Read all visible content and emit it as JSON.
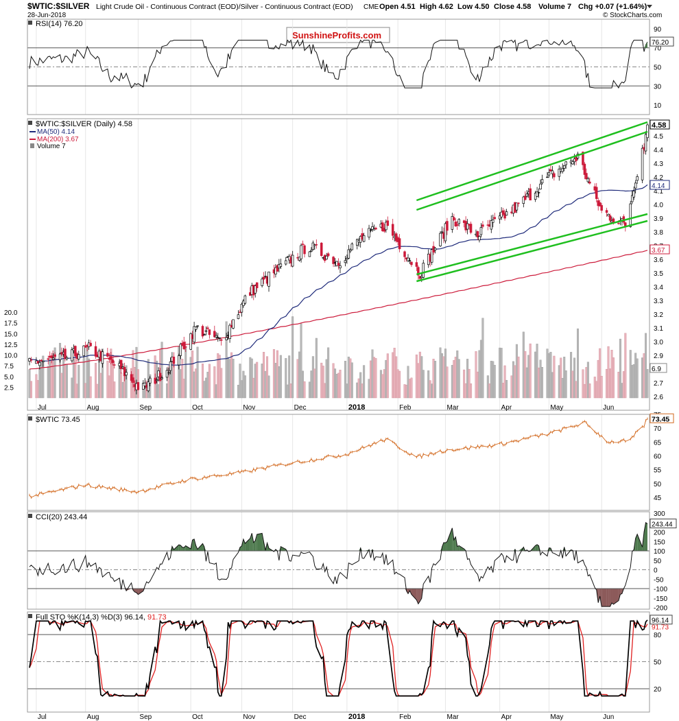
{
  "header": {
    "symbol": "$WTIC:$SILVER",
    "description": "Light Crude Oil - Continuous Contract (EOD)/Silver - Continuous Contract (EOD)",
    "exchange": "CME",
    "date": "28-Jun-2018",
    "open": "Open 4.51",
    "high": "High 4.62",
    "low": "Low 4.50",
    "close": "Close 4.58",
    "volume": "Volume 7",
    "chg": "Chg +0.07 (+1.64%)",
    "watermark": "© StockCharts.com",
    "logo": "SunshineProfits.com"
  },
  "colors": {
    "up": "#000000",
    "down": "#cc1a3a",
    "ma50": "#1e2a7a",
    "ma200": "#cc1a3a",
    "channel": "#1fbf1f",
    "wtic": "#d2691e",
    "cci_fill": "#4e7a4e",
    "cci_fill_neg": "#8c5a5a",
    "vol_up": "#b8b8b8",
    "vol_down": "#e8b4bc"
  },
  "months": [
    "Jul",
    "Aug",
    "Sep",
    "Oct",
    "Nov",
    "Dec",
    "2018",
    "Feb",
    "Mar",
    "Apr",
    "May",
    "Jun"
  ],
  "chart_data": [
    {
      "type": "line",
      "title": "RSI(14) 76.20",
      "last_value": "76.20",
      "ylim": [
        0,
        100
      ],
      "ticks": [
        "90",
        "70",
        "50",
        "30",
        "10"
      ],
      "reference_lines": [
        70,
        50,
        30
      ]
    },
    {
      "type": "candlestick",
      "title": "$WTIC:$SILVER (Daily) 4.58",
      "legend": [
        "MA(50) 4.14",
        "MA(200) 3.67",
        "Volume 7"
      ],
      "ylim": [
        2.55,
        4.7
      ],
      "ticks": [
        "4.5",
        "4.4",
        "4.3",
        "4.2",
        "4.1",
        "4.0",
        "3.9",
        "3.8",
        "3.7",
        "3.6",
        "3.5",
        "3.4",
        "3.3",
        "3.2",
        "3.1",
        "3.0",
        "2.9",
        "2.8",
        "2.7",
        "2.6"
      ],
      "last_labels": [
        "4.58",
        "4.14",
        "3.67",
        "6.9"
      ],
      "volume_ticks": [
        "20.0",
        "17.5",
        "15.0",
        "12.5",
        "10.0",
        "7.5",
        "5.0",
        "2.5"
      ],
      "channel": {
        "upper_line_1": [
          [
            "2018-02-12",
            4.03
          ],
          [
            "2018-06-28",
            4.6
          ]
        ],
        "upper_line_2": [
          [
            "2018-02-12",
            3.96
          ],
          [
            "2018-06-28",
            4.53
          ]
        ],
        "lower_line_1": [
          [
            "2018-02-12",
            3.49
          ],
          [
            "2018-06-28",
            3.93
          ]
        ],
        "lower_line_2": [
          [
            "2018-02-12",
            3.44
          ],
          [
            "2018-06-28",
            3.88
          ]
        ]
      },
      "keypoints": [
        [
          "2017-07-01",
          2.85
        ],
        [
          "2017-07-20",
          2.88
        ],
        [
          "2017-08-03",
          2.95
        ],
        [
          "2017-08-20",
          2.82
        ],
        [
          "2017-09-03",
          2.65
        ],
        [
          "2017-09-18",
          2.8
        ],
        [
          "2017-10-05",
          3.1
        ],
        [
          "2017-10-20",
          3.0
        ],
        [
          "2017-11-05",
          3.35
        ],
        [
          "2017-11-25",
          3.55
        ],
        [
          "2017-12-10",
          3.7
        ],
        [
          "2017-12-28",
          3.58
        ],
        [
          "2018-01-10",
          3.75
        ],
        [
          "2018-01-25",
          3.85
        ],
        [
          "2018-02-14",
          3.5
        ],
        [
          "2018-03-05",
          3.9
        ],
        [
          "2018-03-20",
          3.78
        ],
        [
          "2018-04-12",
          3.98
        ],
        [
          "2018-05-01",
          4.2
        ],
        [
          "2018-05-18",
          4.35
        ],
        [
          "2018-06-01",
          3.95
        ],
        [
          "2018-06-15",
          3.85
        ],
        [
          "2018-06-28",
          4.58
        ]
      ]
    },
    {
      "type": "line",
      "title": "$WTIC 73.45",
      "last_value": "73.45",
      "ylim": [
        42,
        77
      ],
      "ticks": [
        "75",
        "70",
        "65",
        "60",
        "55",
        "50",
        "45"
      ],
      "keypoints": [
        [
          "2017-07-01",
          45.5
        ],
        [
          "2017-08-01",
          49.5
        ],
        [
          "2017-09-01",
          47
        ],
        [
          "2017-10-01",
          51.5
        ],
        [
          "2017-11-01",
          54
        ],
        [
          "2017-12-01",
          57.5
        ],
        [
          "2018-01-01",
          60.5
        ],
        [
          "2018-01-25",
          66
        ],
        [
          "2018-02-12",
          59.5
        ],
        [
          "2018-03-01",
          62
        ],
        [
          "2018-04-01",
          64
        ],
        [
          "2018-05-01",
          68
        ],
        [
          "2018-05-22",
          72
        ],
        [
          "2018-06-05",
          65
        ],
        [
          "2018-06-18",
          65.5
        ],
        [
          "2018-06-28",
          73.45
        ]
      ]
    },
    {
      "type": "line",
      "title": "CCI(20) 243.44",
      "last_value": "243.44",
      "ylim": [
        -225,
        310
      ],
      "ticks": [
        "300",
        "250",
        "200",
        "150",
        "100",
        "50",
        "0",
        "-50",
        "-100",
        "-150",
        "-200"
      ],
      "reference_lines": [
        100,
        0,
        -100
      ]
    },
    {
      "type": "line",
      "title": "Full STO %K(14,3) %D(3) 96.14, 91.73",
      "series": [
        {
          "name": "%K(14,3)",
          "last": "96.14"
        },
        {
          "name": "%D(3)",
          "last": "91.73"
        }
      ],
      "ylim": [
        0,
        108
      ],
      "ticks": [
        "80",
        "50",
        "20"
      ],
      "reference_lines": [
        80,
        50,
        20
      ]
    }
  ]
}
